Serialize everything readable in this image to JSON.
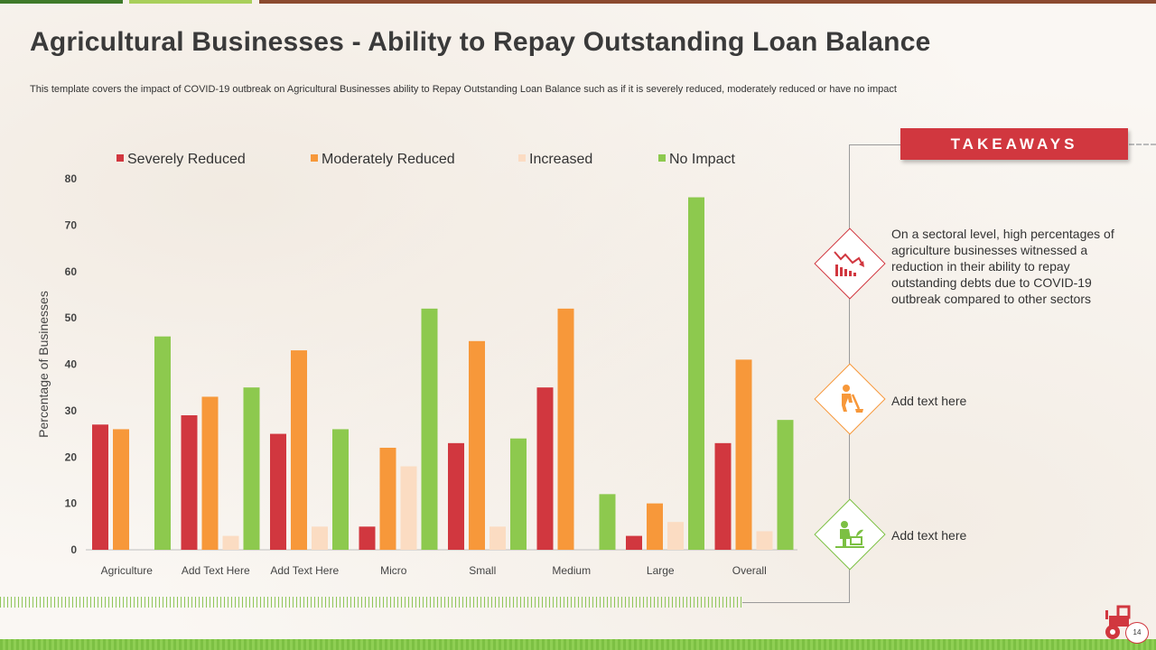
{
  "title": "Agricultural Businesses - Ability to Repay Outstanding Loan Balance",
  "subtitle": "This template covers the impact of COVID-19 outbreak on Agricultural Businesses ability to Repay Outstanding Loan Balance such as if it is severely reduced, moderately reduced or have no impact",
  "chart_data": {
    "type": "bar",
    "categories": [
      "Agriculture",
      "Add Text Here",
      "Add Text Here",
      "Micro",
      "Small",
      "Medium",
      "Large",
      "Overall"
    ],
    "series": [
      {
        "name": "Severely Reduced",
        "color": "#d1373f",
        "values": [
          27,
          29,
          25,
          5,
          23,
          35,
          3,
          23
        ]
      },
      {
        "name": "Moderately Reduced",
        "color": "#f7983a",
        "values": [
          26,
          33,
          43,
          22,
          45,
          52,
          10,
          41
        ]
      },
      {
        "name": "Increased",
        "color": "#fbdcc2",
        "values": [
          0,
          3,
          5,
          18,
          5,
          0,
          6,
          4
        ]
      },
      {
        "name": "No Impact",
        "color": "#8dc94e",
        "values": [
          46,
          35,
          26,
          52,
          24,
          12,
          76,
          28
        ]
      }
    ],
    "ylabel": "Percentage of Businesses",
    "xlabel": "",
    "ylim": [
      0,
      80
    ],
    "yticks": [
      0,
      10,
      20,
      30,
      40,
      50,
      60,
      70,
      80
    ],
    "legend_position": "top",
    "grid": false
  },
  "takeaways": {
    "heading": "TAKEAWAYS",
    "items": [
      {
        "text": "On a sectoral level, high percentages of  agriculture businesses witnessed a reduction in their ability to repay outstanding debts due to COVID-19 outbreak compared to other sectors",
        "icon": "declining-chart-icon",
        "color": "#d1373f"
      },
      {
        "text": "Add text here",
        "icon": "worker-digging-icon",
        "color": "#f7983a"
      },
      {
        "text": "Add text here",
        "icon": "farmer-planting-icon",
        "color": "#7cc043"
      }
    ]
  },
  "footer": {
    "page_number": "14",
    "icon": "tractor-icon"
  },
  "colors": {
    "accent_red": "#d1373f",
    "accent_orange": "#f7983a",
    "accent_green": "#8dc94e"
  }
}
